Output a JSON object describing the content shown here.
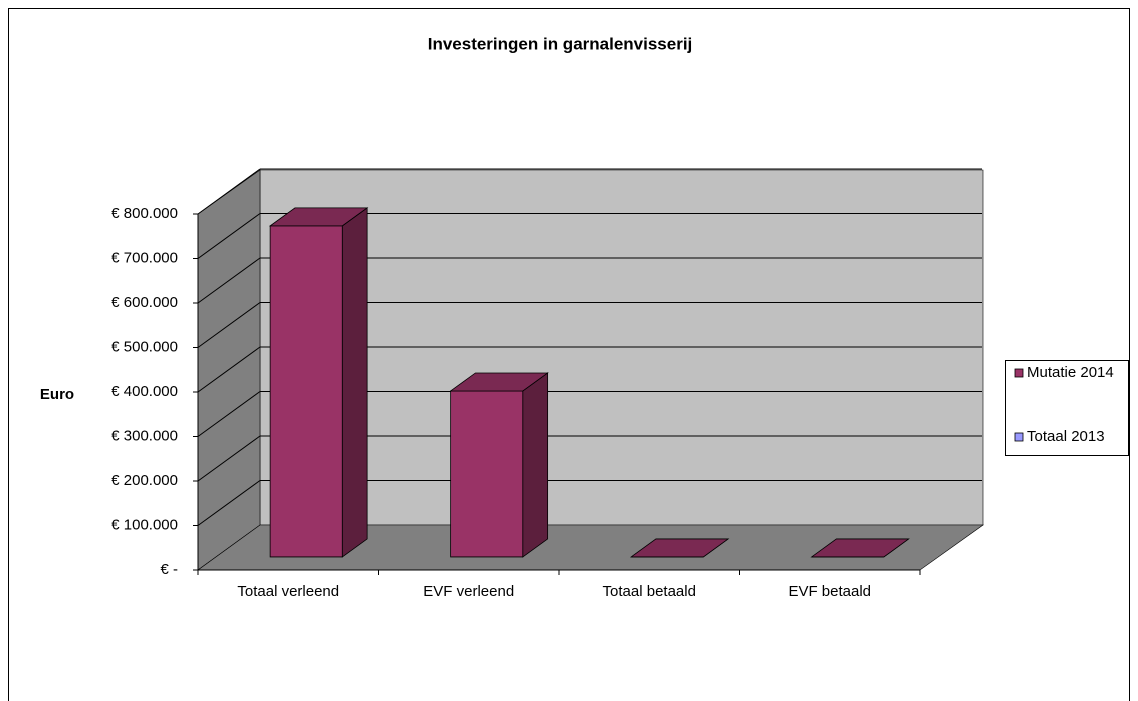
{
  "chart_data": {
    "type": "bar3d",
    "title": "Investeringen in garnalenvisserij",
    "y_label": "Euro",
    "categories": [
      "Totaal verleend",
      "EVF verleend",
      "Totaal betaald",
      "EVF betaald"
    ],
    "series": [
      {
        "name": "Mutatie 2014",
        "color": "#993366",
        "values": [
          744000,
          373000,
          0,
          0
        ]
      },
      {
        "name": "Totaal 2013",
        "color": "#9999ff",
        "values": [
          null,
          null,
          null,
          null
        ]
      }
    ],
    "ylim": [
      0,
      800000
    ],
    "yticks": [
      {
        "value": 0,
        "label": "€ -"
      },
      {
        "value": 100000,
        "label": "€ 100.000"
      },
      {
        "value": 200000,
        "label": "€ 200.000"
      },
      {
        "value": 300000,
        "label": "€ 300.000"
      },
      {
        "value": 400000,
        "label": "€ 400.000"
      },
      {
        "value": 500000,
        "label": "€ 500.000"
      },
      {
        "value": 600000,
        "label": "€ 600.000"
      },
      {
        "value": 700000,
        "label": "€ 700.000"
      },
      {
        "value": 800000,
        "label": "€ 800.000"
      }
    ],
    "grid": true,
    "legend": "right"
  }
}
